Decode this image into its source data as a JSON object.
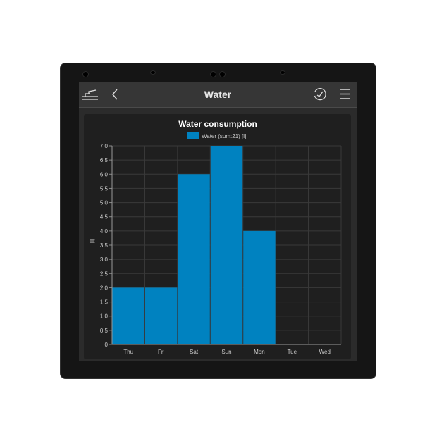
{
  "header": {
    "title": "Water",
    "icons": [
      "tap-icon",
      "back-chevron-icon",
      "history-clock-icon",
      "menu-icon"
    ]
  },
  "chart_data": {
    "type": "bar",
    "title": "Water consumption",
    "legend": [
      "Water (sum:21) [l]"
    ],
    "legend_placement": "top",
    "ylabel": "[l]",
    "xlabel": "",
    "categories": [
      "Thu",
      "Fri",
      "Sat",
      "Sun",
      "Mon",
      "Tue",
      "Wed"
    ],
    "series": [
      {
        "name": "Water (sum:21) [l]",
        "values": [
          2,
          2,
          6,
          7,
          4,
          0,
          0
        ],
        "color": "#0082c0"
      }
    ],
    "ylim": [
      0,
      7
    ],
    "yticks": [
      "0",
      "0.5",
      "1.0",
      "1.5",
      "2.0",
      "2.5",
      "3.0",
      "3.5",
      "4.0",
      "4.5",
      "5.0",
      "5.5",
      "6.0",
      "6.5",
      "7.0"
    ],
    "grid": true
  }
}
